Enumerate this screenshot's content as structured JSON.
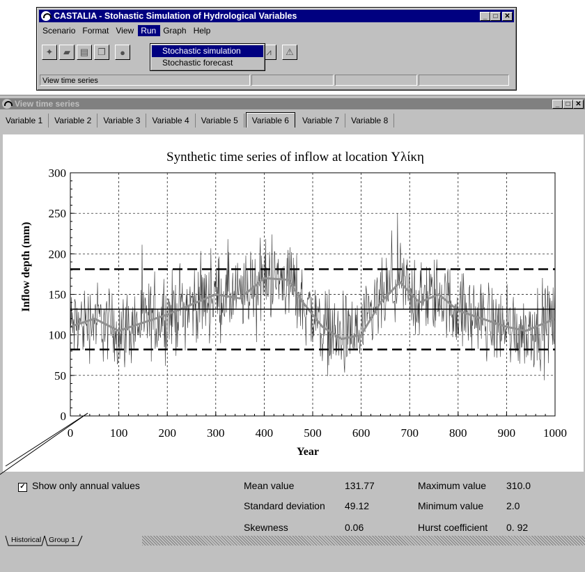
{
  "app": {
    "title": "CASTALIA - Stohastic Simulation of Hydrological Variables",
    "menu": [
      "Scenario",
      "Format",
      "View",
      "Run",
      "Graph",
      "Help"
    ],
    "active_menu": "Run",
    "run_menu_items": [
      "Stochastic simulation",
      "Stochastic forecast"
    ],
    "status_text": "View time series"
  },
  "child": {
    "title": "View time series",
    "tabs": [
      "Variable 1",
      "Variable 2",
      "Variable 3",
      "Variable 4",
      "Variable 5",
      "Variable 6",
      "Variable 7",
      "Variable 8"
    ],
    "selected_tab": "Variable 6",
    "show_annual_label": "Show only annual values",
    "show_annual_checked": true,
    "stats": {
      "mean_label": "Mean value",
      "mean_value": "131.77",
      "sd_label": "Standard deviation",
      "sd_value": "49.12",
      "skew_label": "Skewness",
      "skew_value": "0.06",
      "max_label": "Maximum value",
      "max_value": "310.0",
      "min_label": "Minimum value",
      "min_value": "2.0",
      "hurst_label": "Hurst coefficient",
      "hurst_value": "0. 92"
    },
    "bottom_tabs": [
      "Historical",
      "Group 1"
    ]
  },
  "chart_data": {
    "type": "line",
    "title": "Synthetic time series of inflow at location Υλίκη",
    "xlabel": "Year",
    "ylabel": "Inflow depth (mm)",
    "xlim": [
      0,
      1000
    ],
    "ylim": [
      0,
      300
    ],
    "xticks": [
      0,
      100,
      200,
      300,
      400,
      500,
      600,
      700,
      800,
      900,
      1000
    ],
    "yticks": [
      0,
      50,
      100,
      150,
      200,
      250,
      300
    ],
    "grid": true,
    "mean": 131.77,
    "bands": [
      82,
      181
    ],
    "moving_average": {
      "x": [
        0,
        50,
        100,
        150,
        200,
        260,
        300,
        350,
        400,
        450,
        480,
        520,
        560,
        600,
        640,
        680,
        720,
        760,
        800,
        850,
        900,
        940,
        980,
        1000
      ],
      "y": [
        110,
        120,
        105,
        115,
        125,
        140,
        150,
        145,
        170,
        168,
        140,
        110,
        95,
        100,
        140,
        165,
        140,
        150,
        130,
        120,
        110,
        105,
        115,
        120
      ]
    },
    "colors": {
      "series": "#303030",
      "moving_average": "#909090"
    }
  }
}
